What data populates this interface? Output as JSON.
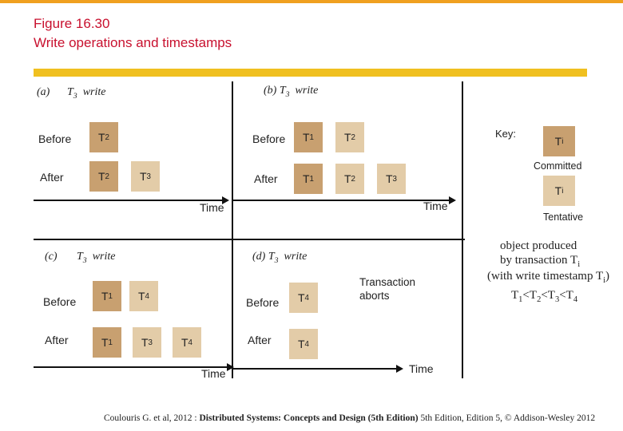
{
  "title": {
    "line1": "Figure 16.30",
    "line2": "Write operations and timestamps"
  },
  "colors": {
    "committed": "#c8a070",
    "tentative": "#e3cca8",
    "title": "#c8102e",
    "bar": "#f0c020"
  },
  "common": {
    "before": "Before",
    "after": "After",
    "time": "Time",
    "write": "write",
    "t3": "T"
  },
  "panels": {
    "a": {
      "label": "(a)"
    },
    "b": {
      "label": "(b)"
    },
    "c": {
      "label": "(c)"
    },
    "d": {
      "label": "(d)",
      "aborts": "Transaction aborts"
    }
  },
  "key": {
    "label": "Key:",
    "ti": "T",
    "committed": "Committed",
    "tentative": "Tentative",
    "desc1": "object produced",
    "desc2": "by transaction T",
    "desc3": "(with write timestamp T",
    "desc4": "T",
    "i": "i",
    "n1": "1",
    "n2": "2",
    "n3": "3",
    "n4": "4",
    "lt": "<",
    "close": ")"
  },
  "footer": {
    "pre": "Coulouris G. et al, 2012 : ",
    "bold": "Distributed Systems: Concepts and Design (5th Edition)",
    "post": " 5th Edition, Edition 5, © Addison-Wesley 2012"
  },
  "subs": {
    "s1": "1",
    "s2": "2",
    "s3": "3",
    "s4": "4"
  }
}
